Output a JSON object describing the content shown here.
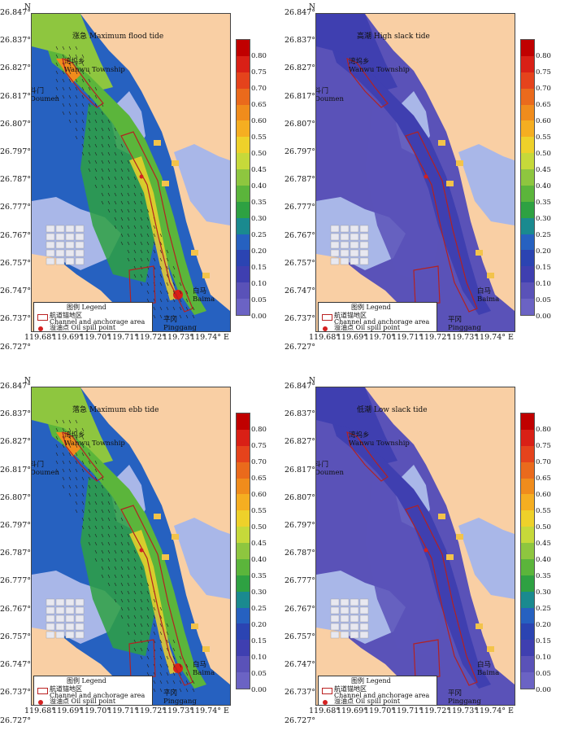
{
  "colors": {
    "land": "#f9cfa4",
    "tidal_flat": "#a9b7e8",
    "channel_box": "#b22222",
    "spill_point": "#d42020",
    "scale": [
      "#6b63c4",
      "#5a52b8",
      "#3f3fb0",
      "#2b44b2",
      "#2661c0",
      "#1a8a8f",
      "#2ea142",
      "#5bb53b",
      "#8ec63f",
      "#c6d93a",
      "#eed12a",
      "#f5ae21",
      "#f08c1c",
      "#ea6a1c",
      "#e5431c",
      "#d92016",
      "#c00000"
    ]
  },
  "map": {
    "north_label": "N",
    "lat_ticks": [
      "26.847°",
      "26.837°",
      "26.827°",
      "26.817°",
      "26.807°",
      "26.797°",
      "26.787°",
      "26.777°",
      "26.767°",
      "26.757°",
      "26.747°",
      "26.737°",
      "26.727°"
    ],
    "lon_ticks": [
      "119.68°",
      "119.69°",
      "119.70°",
      "119.71°",
      "119.72°",
      "119.73°",
      "119.74° E"
    ],
    "places": {
      "wanwu": "湾坞乡\nWanwu Township",
      "doumen": "斗门\nDoumen",
      "baima": "白马\nBaima",
      "pinggang": "平冈\nPinggang"
    }
  },
  "legend": {
    "title": "图例 Legend",
    "channel_cn": "航道锚地区",
    "channel_en": "Channel and anchorage area",
    "spill": "溢油点 Oil spill point"
  },
  "colorbar": {
    "labels": [
      "0.80",
      "0.75",
      "0.70",
      "0.65",
      "0.60",
      "0.55",
      "0.50",
      "0.45",
      "0.40",
      "0.35",
      "0.30",
      "0.25",
      "0.20",
      "0.15",
      "0.10",
      "0.05",
      "0.00"
    ]
  },
  "panels": [
    {
      "title": "涨急 Maximum flood tide",
      "intensity": "high"
    },
    {
      "title": "高潮 High slack tide",
      "intensity": "low"
    },
    {
      "title": "落急 Maximum ebb tide",
      "intensity": "high"
    },
    {
      "title": "低潮 Low slack tide",
      "intensity": "low"
    }
  ]
}
